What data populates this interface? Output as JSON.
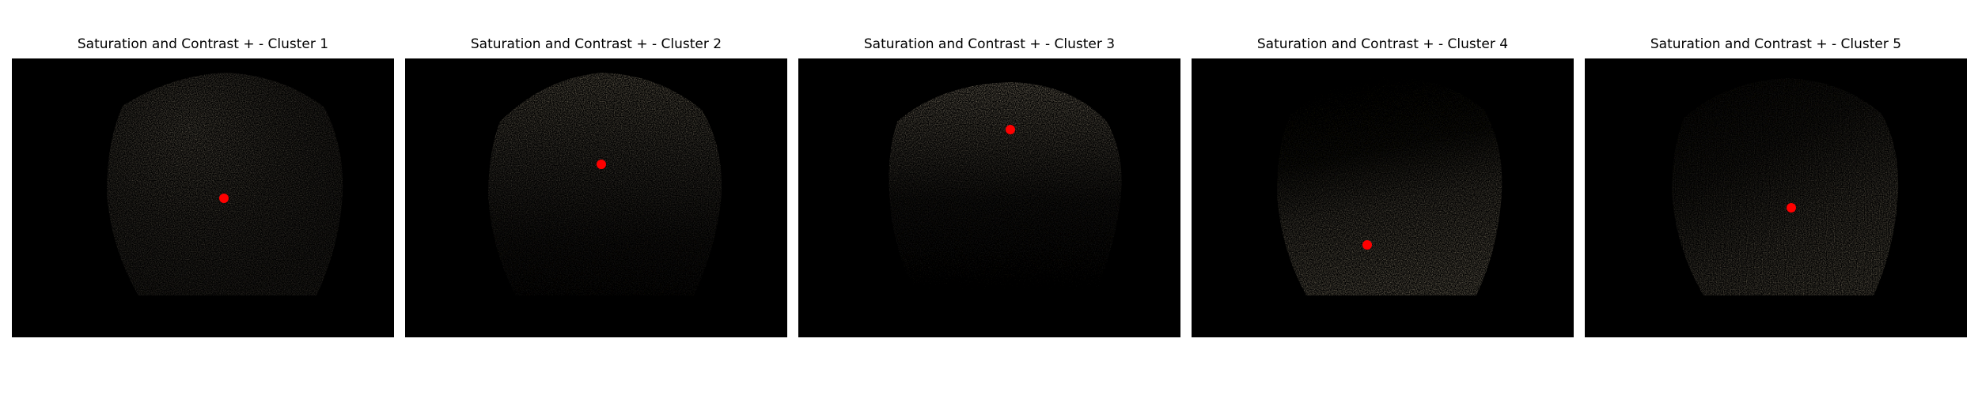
{
  "figure": {
    "panels": [
      {
        "title": "Saturation and Contrast + - Cluster 1",
        "highlight": "top-left",
        "marker_color": "#ff0000"
      },
      {
        "title": "Saturation and Contrast + - Cluster 2",
        "highlight": "top",
        "marker_color": "#ff0000"
      },
      {
        "title": "Saturation and Contrast + - Cluster 3",
        "highlight": "top",
        "marker_color": "#ff0000"
      },
      {
        "title": "Saturation and Contrast + - Cluster 4",
        "highlight": "bottom",
        "marker_color": "#ff0000"
      },
      {
        "title": "Saturation and Contrast + - Cluster 5",
        "highlight": "bottom-right",
        "marker_color": "#ff0000"
      }
    ],
    "colors": {
      "background": "#000000",
      "disc_tint": "#8c8270",
      "marker": "#ff0000"
    }
  }
}
